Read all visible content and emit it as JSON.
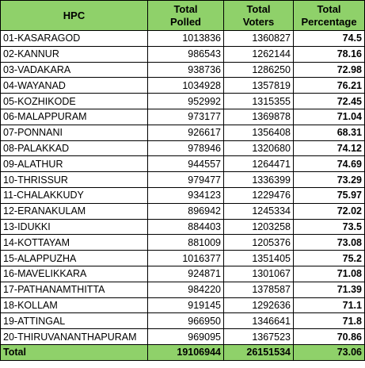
{
  "headers": {
    "hpc": "HPC",
    "total_polled_1": "Total",
    "total_polled_2": "Polled",
    "total_voters_1": "Total",
    "total_voters_2": "Voters",
    "total_pct_1": "Total",
    "total_pct_2": "Percentage"
  },
  "rows": [
    {
      "hpc": "01-KASARAGOD",
      "polled": "1013836",
      "voters": "1360827",
      "pct": "74.5"
    },
    {
      "hpc": "02-KANNUR",
      "polled": "986543",
      "voters": "1262144",
      "pct": "78.16"
    },
    {
      "hpc": "03-VADAKARA",
      "polled": "938736",
      "voters": "1286250",
      "pct": "72.98"
    },
    {
      "hpc": "04-WAYANAD",
      "polled": "1034928",
      "voters": "1357819",
      "pct": "76.21"
    },
    {
      "hpc": "05-KOZHIKODE",
      "polled": "952992",
      "voters": "1315355",
      "pct": "72.45"
    },
    {
      "hpc": "06-MALAPPURAM",
      "polled": "973177",
      "voters": "1369878",
      "pct": "71.04"
    },
    {
      "hpc": "07-PONNANI",
      "polled": "926617",
      "voters": "1356408",
      "pct": "68.31"
    },
    {
      "hpc": "08-PALAKKAD",
      "polled": "978946",
      "voters": "1320680",
      "pct": "74.12"
    },
    {
      "hpc": "09-ALATHUR",
      "polled": "944557",
      "voters": "1264471",
      "pct": "74.69"
    },
    {
      "hpc": "10-THRISSUR",
      "polled": "979477",
      "voters": "1336399",
      "pct": "73.29"
    },
    {
      "hpc": "11-CHALAKKUDY",
      "polled": "934123",
      "voters": "1229476",
      "pct": "75.97"
    },
    {
      "hpc": "12-ERANAKULAM",
      "polled": "896942",
      "voters": "1245334",
      "pct": "72.02"
    },
    {
      "hpc": "13-IDUKKI",
      "polled": "884403",
      "voters": "1203258",
      "pct": "73.5"
    },
    {
      "hpc": "14-KOTTAYAM",
      "polled": "881009",
      "voters": "1205376",
      "pct": "73.08"
    },
    {
      "hpc": "15-ALAPPUZHA",
      "polled": "1016377",
      "voters": "1351405",
      "pct": "75.2"
    },
    {
      "hpc": "16-MAVELIKKARA",
      "polled": "924871",
      "voters": "1301067",
      "pct": "71.08"
    },
    {
      "hpc": "17-PATHANAMTHITTA",
      "polled": "984220",
      "voters": "1378587",
      "pct": "71.39"
    },
    {
      "hpc": "18-KOLLAM",
      "polled": "919145",
      "voters": "1292636",
      "pct": "71.1"
    },
    {
      "hpc": "19-ATTINGAL",
      "polled": "966950",
      "voters": "1346641",
      "pct": "71.8"
    },
    {
      "hpc": "20-THIRUVANANTHAPURAM",
      "polled": "969095",
      "voters": "1367523",
      "pct": "70.86"
    }
  ],
  "total": {
    "label": "Total",
    "polled": "19106944",
    "voters": "26151534",
    "pct": "73.06"
  },
  "colors": {
    "header_bg": "#8fd16a",
    "border": "#000000"
  }
}
